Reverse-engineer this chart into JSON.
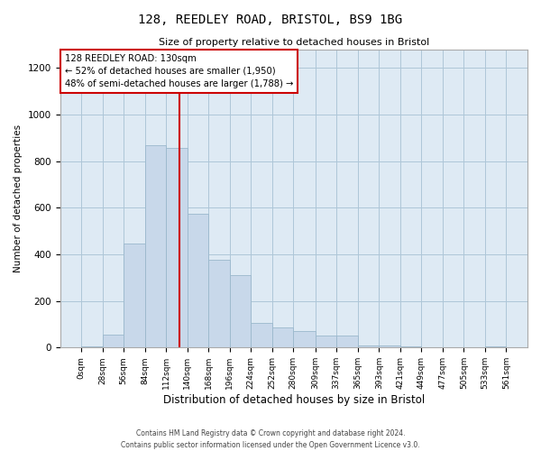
{
  "title": "128, REEDLEY ROAD, BRISTOL, BS9 1BG",
  "subtitle": "Size of property relative to detached houses in Bristol",
  "xlabel": "Distribution of detached houses by size in Bristol",
  "ylabel": "Number of detached properties",
  "bar_color": "#c8d8ea",
  "bar_edgecolor": "#9ab8cc",
  "grid_color": "#aec6d8",
  "background_color": "#deeaf4",
  "vline_x": 130,
  "vline_color": "#cc0000",
  "annotation_text": "128 REEDLEY ROAD: 130sqm\n← 52% of detached houses are smaller (1,950)\n48% of semi-detached houses are larger (1,788) →",
  "annotation_box_edgecolor": "#cc0000",
  "bin_edges": [
    0,
    28,
    56,
    84,
    112,
    140,
    168,
    196,
    224,
    252,
    280,
    309,
    337,
    365,
    393,
    421,
    449,
    477,
    505,
    533,
    561
  ],
  "bar_heights": [
    5,
    55,
    445,
    870,
    855,
    575,
    375,
    310,
    105,
    85,
    70,
    50,
    50,
    10,
    10,
    5,
    0,
    0,
    0,
    5
  ],
  "ylim": [
    0,
    1280
  ],
  "yticks": [
    0,
    200,
    400,
    600,
    800,
    1000,
    1200
  ],
  "footer_line1": "Contains HM Land Registry data © Crown copyright and database right 2024.",
  "footer_line2": "Contains public sector information licensed under the Open Government Licence v3.0."
}
